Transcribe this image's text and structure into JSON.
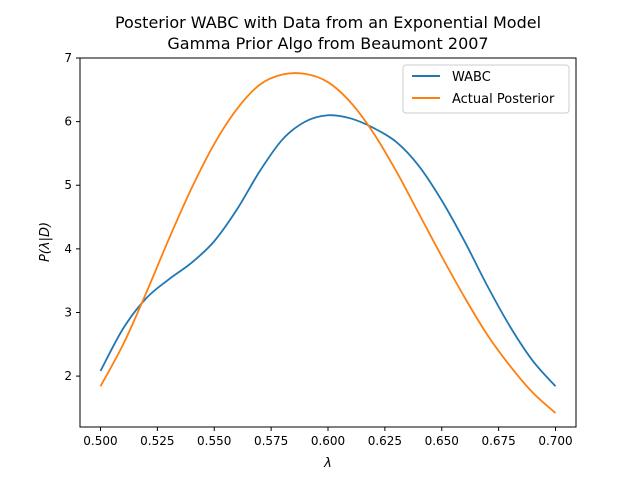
{
  "chart_data": {
    "type": "line",
    "title": "Posterior WABC with Data from an Exponential Model",
    "subtitle": "Gamma Prior Algo from Beaumont 2007",
    "xlabel": "λ",
    "ylabel": "P(λ|D)",
    "xlim": [
      0.491,
      0.709
    ],
    "ylim": [
      1.2,
      7.0
    ],
    "xticks": [
      0.5,
      0.525,
      0.55,
      0.575,
      0.6,
      0.625,
      0.65,
      0.675,
      0.7
    ],
    "xtick_labels": [
      "0.500",
      "0.525",
      "0.550",
      "0.575",
      "0.600",
      "0.625",
      "0.650",
      "0.675",
      "0.700"
    ],
    "yticks": [
      2,
      3,
      4,
      5,
      6,
      7
    ],
    "ytick_labels": [
      "2",
      "3",
      "4",
      "5",
      "6",
      "7"
    ],
    "grid": false,
    "legend_position": "top-right",
    "x": [
      0.5,
      0.51,
      0.52,
      0.53,
      0.54,
      0.55,
      0.56,
      0.57,
      0.58,
      0.59,
      0.6,
      0.61,
      0.62,
      0.63,
      0.64,
      0.65,
      0.66,
      0.67,
      0.68,
      0.69,
      0.7
    ],
    "series": [
      {
        "name": "WABC",
        "color": "#1f77b4",
        "values": [
          2.08,
          2.75,
          3.22,
          3.52,
          3.78,
          4.12,
          4.62,
          5.22,
          5.72,
          6.0,
          6.1,
          6.05,
          5.9,
          5.68,
          5.3,
          4.76,
          4.12,
          3.42,
          2.78,
          2.24,
          1.84
        ]
      },
      {
        "name": "Actual Posterior",
        "color": "#ff7f0e",
        "values": [
          1.84,
          2.5,
          3.3,
          4.15,
          4.95,
          5.65,
          6.2,
          6.58,
          6.74,
          6.75,
          6.62,
          6.3,
          5.82,
          5.22,
          4.55,
          3.88,
          3.24,
          2.65,
          2.16,
          1.74,
          1.42
        ]
      }
    ]
  }
}
